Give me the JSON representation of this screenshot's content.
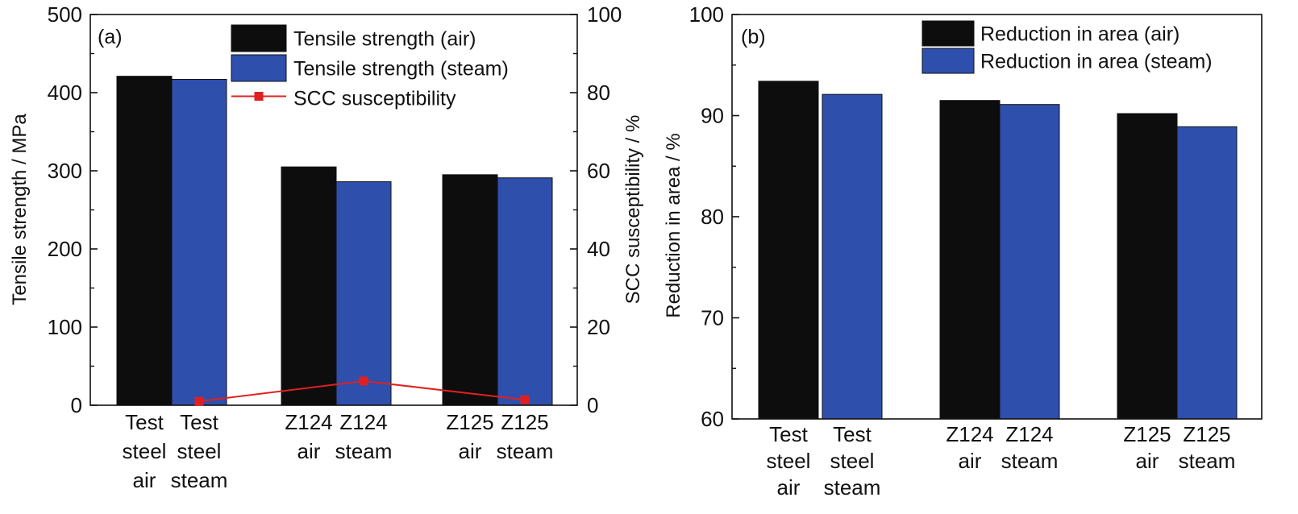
{
  "colors": {
    "air": "#0d0d0d",
    "steam": "#2f4fad",
    "scc": "#e02020",
    "axis": "#111111"
  },
  "chart_data": [
    {
      "type": "bar",
      "panel_label": "(a)",
      "ylabel": "Tensile strength / MPa",
      "ylim": [
        0,
        500
      ],
      "yticks": [
        "0",
        "100",
        "200",
        "300",
        "400",
        "500"
      ],
      "y2label": "SCC susceptibility / %",
      "y2lim": [
        0,
        100
      ],
      "y2ticks": [
        "0",
        "20",
        "40",
        "60",
        "80",
        "100"
      ],
      "bars": [
        {
          "series": "air",
          "value": 421,
          "label_lines": [
            "Test",
            "steel",
            "air"
          ]
        },
        {
          "series": "steam",
          "value": 417,
          "label_lines": [
            "Test",
            "steel",
            "steam"
          ]
        },
        {
          "series": "air",
          "value": 305,
          "label_lines": [
            "Z124",
            "air"
          ]
        },
        {
          "series": "steam",
          "value": 286,
          "label_lines": [
            "Z124",
            "steam"
          ]
        },
        {
          "series": "air",
          "value": 295,
          "label_lines": [
            "Z125",
            "air"
          ]
        },
        {
          "series": "steam",
          "value": 291,
          "label_lines": [
            "Z125",
            "steam"
          ]
        }
      ],
      "series": [
        {
          "name": "Tensile strength (air)",
          "key": "air",
          "values": [
            421,
            305,
            295
          ]
        },
        {
          "name": "Tensile strength (steam)",
          "key": "steam",
          "values": [
            417,
            286,
            291
          ]
        },
        {
          "name": "SCC susceptibility",
          "key": "scc",
          "axis": "right",
          "values": [
            1.0,
            6.2,
            1.4
          ]
        }
      ],
      "legend_position": "top-right"
    },
    {
      "type": "bar",
      "panel_label": "(b)",
      "ylabel": "Reduction in area / %",
      "ylim": [
        60,
        100
      ],
      "yticks": [
        "60",
        "70",
        "80",
        "90",
        "100"
      ],
      "bars": [
        {
          "series": "air",
          "value": 93.4,
          "label_lines": [
            "Test",
            "steel",
            "air"
          ]
        },
        {
          "series": "steam",
          "value": 92.1,
          "label_lines": [
            "Test",
            "steel",
            "steam"
          ]
        },
        {
          "series": "air",
          "value": 91.5,
          "label_lines": [
            "Z124",
            "air"
          ]
        },
        {
          "series": "steam",
          "value": 91.1,
          "label_lines": [
            "Z124",
            "steam"
          ]
        },
        {
          "series": "air",
          "value": 90.2,
          "label_lines": [
            "Z125",
            "air"
          ]
        },
        {
          "series": "steam",
          "value": 88.9,
          "label_lines": [
            "Z125",
            "steam"
          ]
        }
      ],
      "series": [
        {
          "name": "Reduction in area (air)",
          "key": "air",
          "values": [
            93.4,
            91.5,
            90.2
          ]
        },
        {
          "name": "Reduction in area (steam)",
          "key": "steam",
          "values": [
            92.1,
            91.1,
            88.9
          ]
        }
      ],
      "legend_position": "top-right"
    }
  ]
}
